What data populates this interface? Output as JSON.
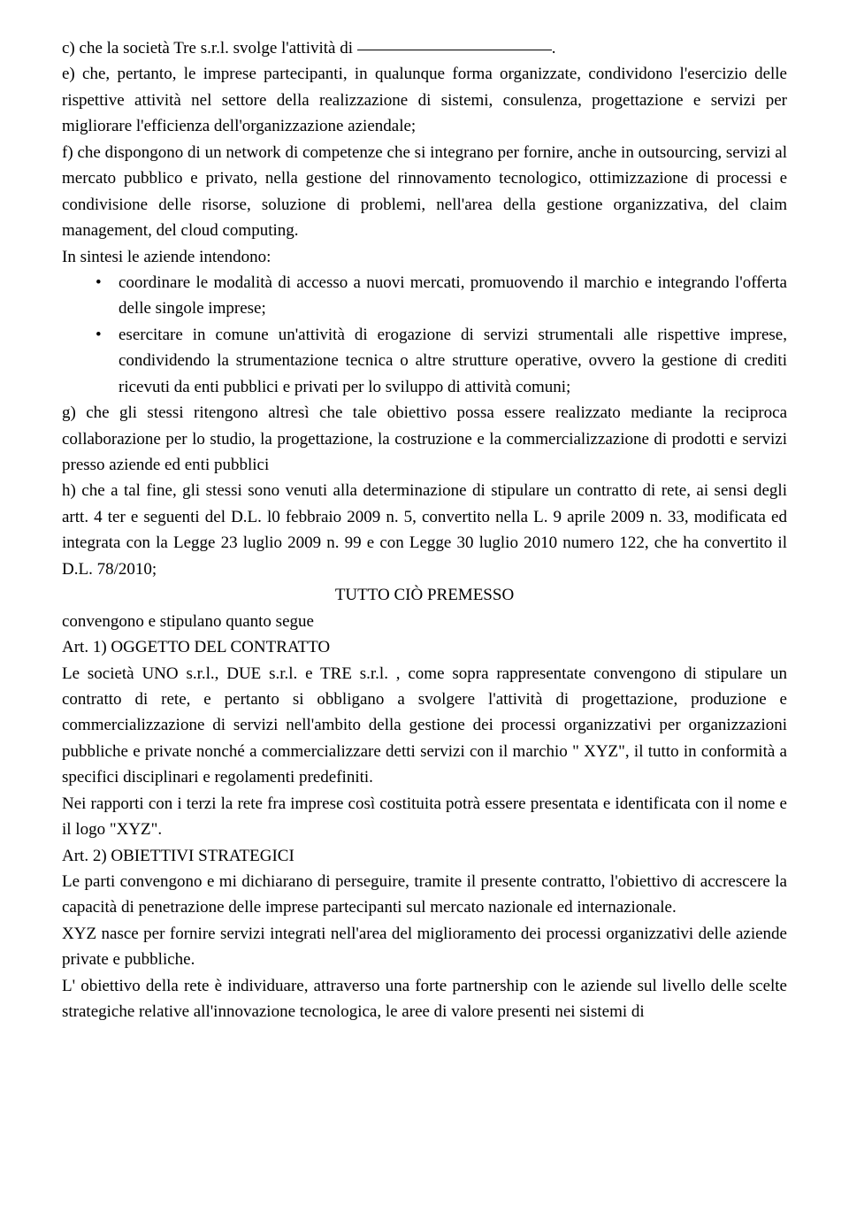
{
  "doc": {
    "line_c": "c) che la società Tre s.r.l. svolge l'attività di ",
    "para_e": "e) che, pertanto, le imprese partecipanti, in qualunque forma organizzate, condividono l'esercizio delle rispettive attività nel settore della realizzazione di sistemi, consulenza, progettazione e servizi per migliorare l'efficienza dell'organizzazione aziendale;",
    "para_f": "f) che dispongono di un network di competenze che si integrano per fornire, anche in outsourcing, servizi al mercato pubblico e privato, nella gestione del rinnovamento tecnologico, ottimizzazione di processi e condivisione delle risorse, soluzione di problemi, nell'area della gestione organizzativa, del claim management, del cloud computing.",
    "sintesi_intro": "In sintesi le aziende intendono:",
    "bullet1": "coordinare le modalità di accesso a nuovi mercati, promuovendo il marchio e integrando l'offerta delle singole imprese;",
    "bullet2": "esercitare in comune un'attività di erogazione di servizi strumentali alle rispettive imprese, condividendo la strumentazione tecnica o altre strutture operative, ovvero la gestione di crediti ricevuti da enti pubblici e privati per lo sviluppo di attività comuni;",
    "para_g": "g) che gli stessi ritengono altresì che tale obiettivo possa essere realizzato mediante la reciproca collaborazione per lo studio, la progettazione, la costruzione e la commercializzazione di prodotti e servizi presso aziende ed enti pubblici",
    "para_h": "h) che a tal fine, gli stessi sono venuti alla determinazione di stipulare un contratto di rete, ai sensi degli artt. 4 ter e seguenti del D.L. l0 febbraio 2009 n. 5, convertito nella L. 9 aprile 2009 n. 33, modificata ed integrata con la Legge 23 luglio 2009 n. 99 e con Legge 30 luglio 2010 numero 122, che ha convertito il D.L. 78/2010;",
    "premesso": "TUTTO CIÒ PREMESSO",
    "convengono": "convengono e stipulano quanto segue",
    "art1_title": "Art. 1) OGGETTO DEL CONTRATTO",
    "art1_p1": "Le società UNO s.r.l., DUE s.r.l. e TRE s.r.l. , come sopra rappresentate convengono di stipulare un contratto di rete, e pertanto si obbligano a svolgere l'attività di progettazione, produzione e commercializzazione di servizi nell'ambito della gestione dei processi organizzativi per organizzazioni pubbliche e private nonché a commercializzare detti servizi con il marchio \" XYZ\", il tutto in conformità a specifici disciplinari e regolamenti predefiniti.",
    "art1_p2": "Nei rapporti con i terzi la rete fra imprese così costituita potrà essere presentata e identificata con il nome e il logo \"XYZ\".",
    "art2_title": "Art. 2) OBIETTIVI STRATEGICI",
    "art2_p1": "Le parti convengono e mi dichiarano di perseguire, tramite il presente contratto, l'obiettivo di accrescere la capacità di penetrazione delle imprese partecipanti sul mercato nazionale ed internazionale.",
    "art2_p2": "XYZ nasce per fornire servizi integrati nell'area del miglioramento dei processi organizzativi delle aziende private e pubbliche.",
    "art2_p3": "L' obiettivo della rete è individuare, attraverso una forte partnership con le aziende sul livello delle scelte strategiche relative all'innovazione tecnologica, le aree di valore presenti nei sistemi di"
  }
}
